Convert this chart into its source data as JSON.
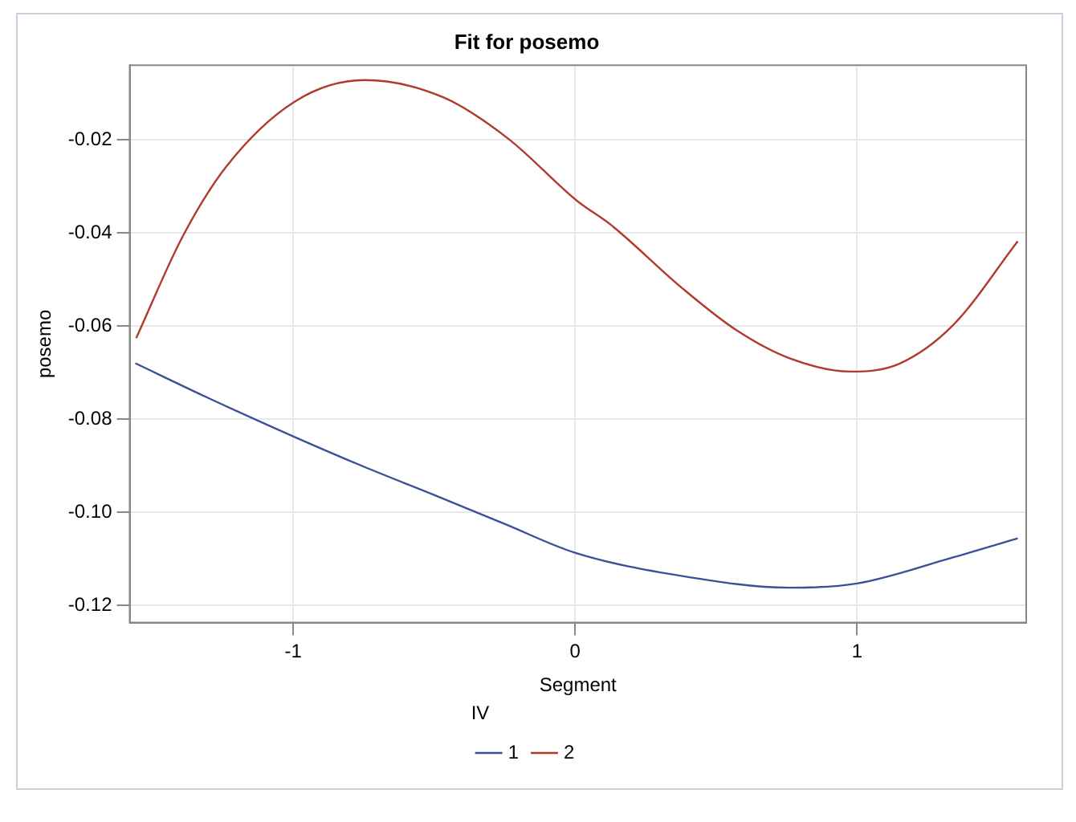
{
  "chart_data": {
    "type": "line",
    "title": "Fit for posemo",
    "xlabel": "Segment",
    "ylabel": "posemo",
    "legend_title": "IV",
    "xlim": [
      -1.58,
      1.6
    ],
    "xticks": [
      -1,
      0,
      1
    ],
    "ylim": [
      -0.1237,
      -0.004
    ],
    "yticks": [
      -0.12,
      {
        "value": -0.1,
        "label": "-0.10"
      },
      -0.08,
      -0.06,
      -0.04,
      -0.02
    ],
    "grid": true,
    "legend": "bottom",
    "marker": "none",
    "line_style": "solid",
    "series": [
      {
        "name": "1",
        "color": "#3b4f9a",
        "x": [
          -1.56,
          -1.3,
          -1.0,
          -0.75,
          -0.5,
          -0.25,
          0,
          0.38,
          0.76,
          1.0,
          1.34,
          1.57
        ],
        "values": [
          -0.068,
          -0.0755,
          -0.0837,
          -0.0902,
          -0.0963,
          -0.1025,
          -0.1087,
          -0.1137,
          -0.1162,
          -0.1153,
          -0.1097,
          -0.1056
        ]
      },
      {
        "name": "2",
        "color": "#b03a2e",
        "x": [
          -1.557,
          -1.393,
          -1.239,
          -0.994,
          -0.747,
          -0.468,
          -0.237,
          0.006,
          0.127,
          0.382,
          0.572,
          0.763,
          0.977,
          1.15,
          1.341,
          1.57
        ],
        "values": [
          -0.0626,
          -0.0409,
          -0.0259,
          -0.0118,
          -0.0072,
          -0.0109,
          -0.0198,
          -0.0331,
          -0.0383,
          -0.052,
          -0.0609,
          -0.067,
          -0.0698,
          -0.0681,
          -0.0598,
          -0.0418
        ]
      }
    ]
  }
}
